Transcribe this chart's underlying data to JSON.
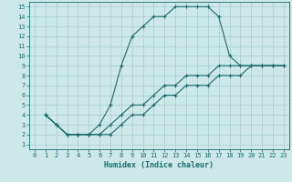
{
  "xlabel": "Humidex (Indice chaleur)",
  "ylabel": "",
  "bg_color": "#cde8e8",
  "grid_color": "#a8cccc",
  "line_color": "#1a6b6b",
  "xlim": [
    -0.5,
    23.5
  ],
  "ylim": [
    0.5,
    15.5
  ],
  "xticks": [
    0,
    1,
    2,
    3,
    4,
    5,
    6,
    7,
    8,
    9,
    10,
    11,
    12,
    13,
    14,
    15,
    16,
    17,
    18,
    19,
    20,
    21,
    22,
    23
  ],
  "yticks": [
    1,
    2,
    3,
    4,
    5,
    6,
    7,
    8,
    9,
    10,
    11,
    12,
    13,
    14,
    15
  ],
  "curve1_x": [
    1,
    2,
    3,
    4,
    5,
    6,
    7,
    8,
    9,
    10,
    11,
    12,
    13,
    14,
    15,
    16,
    17,
    18,
    19,
    20,
    21,
    22,
    23
  ],
  "curve1_y": [
    4,
    3,
    2,
    2,
    2,
    3,
    5,
    9,
    12,
    13,
    14,
    14,
    15,
    15,
    15,
    15,
    14,
    10,
    9,
    9,
    9,
    9,
    9
  ],
  "curve2_x": [
    1,
    2,
    3,
    4,
    5,
    6,
    7,
    8,
    9,
    10,
    11,
    12,
    13,
    14,
    15,
    16,
    17,
    18,
    19,
    20,
    21,
    22,
    23
  ],
  "curve2_y": [
    4,
    3,
    2,
    2,
    2,
    2,
    3,
    4,
    5,
    5,
    6,
    7,
    7,
    8,
    8,
    8,
    9,
    9,
    9,
    9,
    9,
    9,
    9
  ],
  "curve3_x": [
    1,
    2,
    3,
    4,
    5,
    6,
    7,
    8,
    9,
    10,
    11,
    12,
    13,
    14,
    15,
    16,
    17,
    18,
    19,
    20,
    21,
    22,
    23
  ],
  "curve3_y": [
    4,
    3,
    2,
    2,
    2,
    2,
    2,
    3,
    4,
    4,
    5,
    6,
    6,
    7,
    7,
    7,
    8,
    8,
    8,
    9,
    9,
    9,
    9
  ]
}
